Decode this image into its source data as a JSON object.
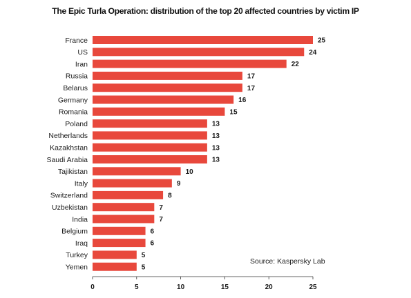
{
  "chart_data": {
    "type": "bar",
    "orientation": "horizontal",
    "title": "The Epic Turla Operation: distribution of the top 20 affected countries by victim IP",
    "categories": [
      "France",
      "US",
      "Iran",
      "Russia",
      "Belarus",
      "Germany",
      "Romania",
      "Poland",
      "Netherlands",
      "Kazakhstan",
      "Saudi Arabia",
      "Tajikistan",
      "Italy",
      "Switzerland",
      "Uzbekistan",
      "India",
      "Belgium",
      "Iraq",
      "Turkey",
      "Yemen"
    ],
    "values": [
      25,
      24,
      22,
      17,
      17,
      16,
      15,
      13,
      13,
      13,
      13,
      10,
      9,
      8,
      7,
      7,
      6,
      6,
      5,
      5
    ],
    "xlim": [
      0,
      25
    ],
    "xticks": [
      0,
      5,
      10,
      15,
      20,
      25
    ],
    "xlabel": "",
    "ylabel": "",
    "grid": false,
    "bar_color": "#e8483c",
    "source": "Source: Kaspersky Lab"
  }
}
